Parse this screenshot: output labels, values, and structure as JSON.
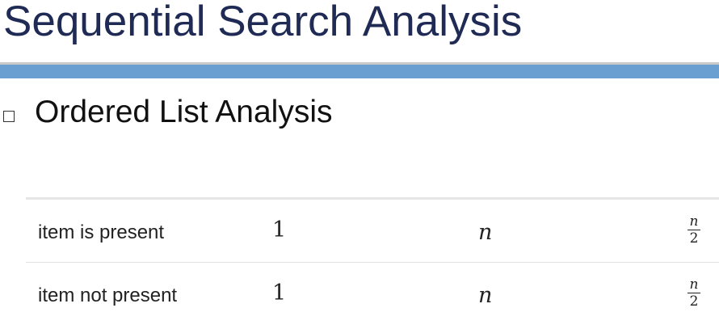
{
  "slide": {
    "title": "Sequential Search Analysis",
    "bullet": "Ordered List Analysis"
  },
  "table": {
    "rows": [
      {
        "case": "item is present",
        "best": "1",
        "worst": "n",
        "avg_num": "n",
        "avg_den": "2"
      },
      {
        "case": "item not present",
        "best": "1",
        "worst": "n",
        "avg_num": "n",
        "avg_den": "2"
      }
    ]
  },
  "colors": {
    "title": "#1f2a55",
    "band": "#6a9fd1",
    "rule": "#c9c9c9"
  }
}
